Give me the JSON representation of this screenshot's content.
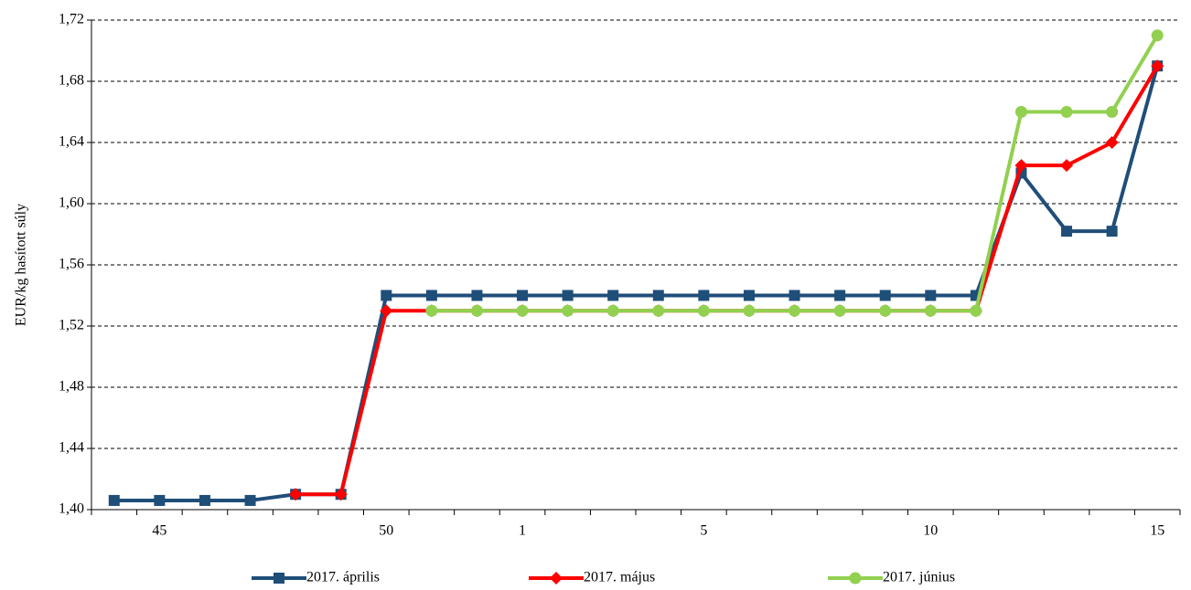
{
  "chart_data": {
    "type": "line",
    "y_label": "EUR/kg hasított súly",
    "categories": [
      null,
      "45",
      null,
      null,
      null,
      null,
      "50",
      null,
      null,
      "1",
      null,
      null,
      null,
      "5",
      null,
      null,
      null,
      null,
      "10",
      null,
      null,
      null,
      null,
      "15"
    ],
    "ylim": [
      1.4,
      1.72
    ],
    "yticks": [
      {
        "value": 1.4,
        "label": "1,40"
      },
      {
        "value": 1.44,
        "label": "1,44"
      },
      {
        "value": 1.48,
        "label": "1,48"
      },
      {
        "value": 1.52,
        "label": "1,52"
      },
      {
        "value": 1.56,
        "label": "1,56"
      },
      {
        "value": 1.6,
        "label": "1,60"
      },
      {
        "value": 1.64,
        "label": "1,64"
      },
      {
        "value": 1.68,
        "label": "1,68"
      },
      {
        "value": 1.72,
        "label": "1,72"
      }
    ],
    "grid": true,
    "legend": "bottom",
    "series": [
      {
        "name": "2017. április",
        "color": "#1f4e79",
        "marker": "square",
        "values": [
          1.406,
          1.406,
          1.406,
          1.406,
          1.41,
          1.41,
          1.54,
          1.54,
          1.54,
          1.54,
          1.54,
          1.54,
          1.54,
          1.54,
          1.54,
          1.54,
          1.54,
          1.54,
          1.54,
          1.54,
          1.62,
          1.582,
          1.582,
          1.69
        ]
      },
      {
        "name": "2017. május",
        "color": "#ff0000",
        "marker": "diamond",
        "values": [
          null,
          null,
          null,
          null,
          1.41,
          1.41,
          1.53,
          1.53,
          1.53,
          1.53,
          1.53,
          1.53,
          1.53,
          1.53,
          1.53,
          1.53,
          1.53,
          1.53,
          1.53,
          1.53,
          1.625,
          1.625,
          1.64,
          1.69
        ]
      },
      {
        "name": "2017. június",
        "color": "#92d050",
        "marker": "circle",
        "values": [
          null,
          null,
          null,
          null,
          null,
          null,
          null,
          1.53,
          1.53,
          1.53,
          1.53,
          1.53,
          1.53,
          1.53,
          1.53,
          1.53,
          1.53,
          1.53,
          1.53,
          1.53,
          1.66,
          1.66,
          1.66,
          1.71
        ]
      }
    ]
  }
}
